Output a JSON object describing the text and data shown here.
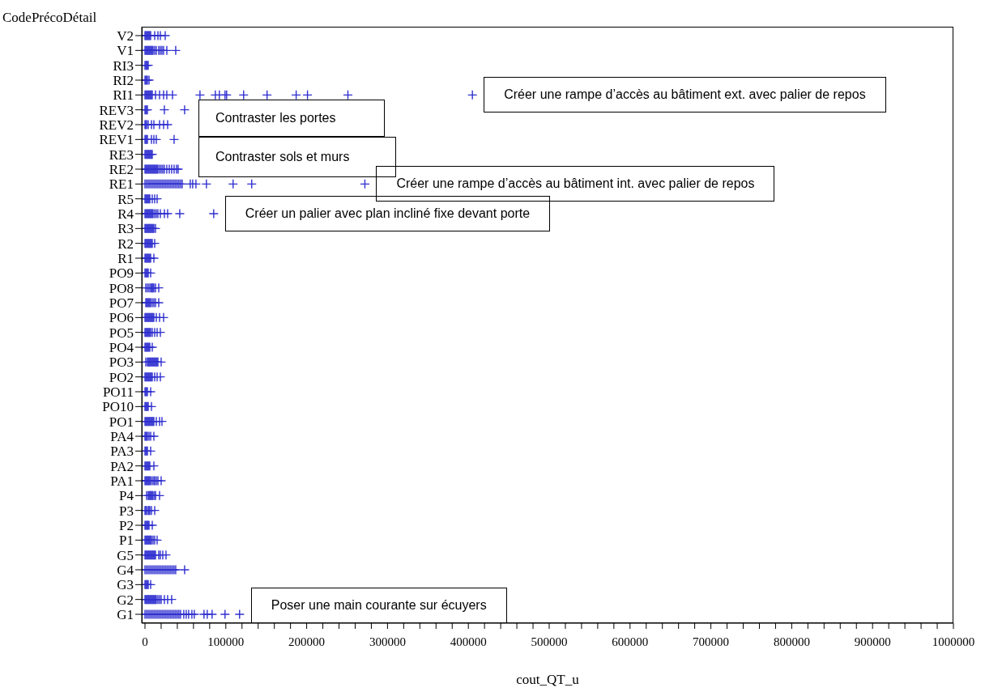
{
  "chart_data": {
    "type": "scatter",
    "orientation": "horizontal",
    "marker": "cross",
    "ylabel": "CodePrécoDétail",
    "xlabel": "cout_QT_u",
    "categories": [
      "V2",
      "V1",
      "RI3",
      "RI2",
      "RI1",
      "REV3",
      "REV2",
      "REV1",
      "RE3",
      "RE2",
      "RE1",
      "R5",
      "R4",
      "R3",
      "R2",
      "R1",
      "PO9",
      "PO8",
      "PO7",
      "PO6",
      "PO5",
      "PO4",
      "PO3",
      "PO2",
      "PO11",
      "PO10",
      "PO1",
      "PA4",
      "PA3",
      "PA2",
      "PA1",
      "P4",
      "P3",
      "P2",
      "P1",
      "G5",
      "G4",
      "G3",
      "G2",
      "G1"
    ],
    "xlim": [
      -4000,
      1000000
    ],
    "xticks": [
      0,
      {
        "value": 20000,
        "label": null
      },
      {
        "value": 40000,
        "label": null
      },
      {
        "value": 60000,
        "label": null
      },
      {
        "value": 80000,
        "label": null
      },
      100000,
      {
        "value": 120000,
        "label": null
      },
      {
        "value": 140000,
        "label": null
      },
      {
        "value": 160000,
        "label": null
      },
      {
        "value": 180000,
        "label": null
      },
      200000,
      {
        "value": 220000,
        "label": null
      },
      {
        "value": 240000,
        "label": null
      },
      {
        "value": 260000,
        "label": null
      },
      {
        "value": 280000,
        "label": null
      },
      300000,
      {
        "value": 320000,
        "label": null
      },
      {
        "value": 340000,
        "label": null
      },
      {
        "value": 360000,
        "label": null
      },
      {
        "value": 380000,
        "label": null
      },
      400000,
      {
        "value": 420000,
        "label": null
      },
      {
        "value": 440000,
        "label": null
      },
      {
        "value": 460000,
        "label": null
      },
      {
        "value": 480000,
        "label": null
      },
      500000,
      {
        "value": 520000,
        "label": null
      },
      {
        "value": 540000,
        "label": null
      },
      {
        "value": 560000,
        "label": null
      },
      {
        "value": 580000,
        "label": null
      },
      600000,
      {
        "value": 620000,
        "label": null
      },
      {
        "value": 640000,
        "label": null
      },
      {
        "value": 660000,
        "label": null
      },
      {
        "value": 680000,
        "label": null
      },
      700000,
      {
        "value": 720000,
        "label": null
      },
      {
        "value": 740000,
        "label": null
      },
      {
        "value": 760000,
        "label": null
      },
      {
        "value": 780000,
        "label": null
      },
      800000,
      {
        "value": 820000,
        "label": null
      },
      {
        "value": 840000,
        "label": null
      },
      {
        "value": 860000,
        "label": null
      },
      {
        "value": 880000,
        "label": null
      },
      900000,
      {
        "value": 920000,
        "label": null
      },
      {
        "value": 940000,
        "label": null
      },
      {
        "value": 960000,
        "label": null
      },
      {
        "value": 980000,
        "label": null
      },
      1000000
    ],
    "annotations": [
      {
        "text": "Créer une rampe d’accès au bâtiment ext. avec palier de repos",
        "x": 405000,
        "y": "RI1"
      },
      "Contraster les portes",
      "Contraster sols et murs",
      {
        "text": "Créer une rampe d’accès au bâtiment int. avec palier de repos",
        "x": 272000,
        "y": "RE1"
      },
      {
        "text": "Créer un palier avec plan incliné fixe devant porte",
        "x": 85000,
        "y": "R4"
      },
      {
        "text": "Poser une main courante sur écuyers",
        "x": 117000,
        "y": "G1"
      }
    ],
    "series": [
      {
        "color": "#3030d0",
        "x": [
          "V2",
          "V2",
          "V2",
          "V2",
          "V2",
          "V2",
          "V2",
          "V2",
          "V2",
          "V2",
          "V2",
          "V2",
          "V1",
          "V1",
          "V1",
          "V1",
          "V1",
          "V1",
          "V1",
          "V1",
          "V1",
          "V1",
          "V1",
          "V1",
          "V1",
          "V1",
          "V1",
          "V1",
          "V1",
          "V1",
          "V1",
          "RI3",
          "RI3",
          "RI3",
          "RI3",
          "RI3",
          "RI2",
          "RI2",
          "RI2",
          "RI2",
          "RI2",
          "RI1",
          "RI1",
          "RI1",
          "RI1",
          "RI1",
          "RI1",
          "RI1",
          "RI1",
          "RI1",
          "RI1",
          "RI1",
          "RI1",
          "RI1",
          "RI1",
          "RI1",
          "RI1",
          "RI1",
          "RI1",
          "RI1",
          "RI1",
          "RI1",
          "RI1",
          "RI1",
          "RI1",
          "RI1",
          "RI1",
          "REV3",
          "REV3",
          "REV3",
          "REV3",
          "REV3",
          "REV3",
          "REV2",
          "REV2",
          "REV2",
          "REV2",
          "REV2",
          "REV2",
          "REV2",
          "REV2",
          "REV2",
          "REV1",
          "REV1",
          "REV1",
          "REV1",
          "REV1",
          "REV1",
          "REV1",
          "REV1",
          "RE3",
          "RE3",
          "RE3",
          "RE3",
          "RE3",
          "RE3",
          "RE3",
          "RE3",
          "RE3",
          "RE3",
          "RE2",
          "RE2",
          "RE2",
          "RE2",
          "RE2",
          "RE2",
          "RE2",
          "RE2",
          "RE2",
          "RE2",
          "RE2",
          "RE2",
          "RE2",
          "RE2",
          "RE2",
          "RE2",
          "RE2",
          "RE2",
          "RE2",
          "RE2",
          "RE2",
          "RE2",
          "RE2",
          "RE2",
          "RE2",
          "RE2",
          "RE2",
          "RE1",
          "RE1",
          "RE1",
          "RE1",
          "RE1",
          "RE1",
          "RE1",
          "RE1",
          "RE1",
          "RE1",
          "RE1",
          "RE1",
          "RE1",
          "RE1",
          "RE1",
          "RE1",
          "RE1",
          "RE1",
          "RE1",
          "RE1",
          "RE1",
          "RE1",
          "RE1",
          "RE1",
          "RE1",
          "RE1",
          "RE1",
          "RE1",
          "RE1",
          "RE1",
          "RE1",
          "R5",
          "R5",
          "R5",
          "R5",
          "R5",
          "R5",
          "R5",
          "R5",
          "R5",
          "R5",
          "R4",
          "R4",
          "R4",
          "R4",
          "R4",
          "R4",
          "R4",
          "R4",
          "R4",
          "R4",
          "R4",
          "R4",
          "R4",
          "R4",
          "R4",
          "R4",
          "R4",
          "R4",
          "R4",
          "R3",
          "R3",
          "R3",
          "R3",
          "R3",
          "R3",
          "R3",
          "R3",
          "R3",
          "R3",
          "R3",
          "R3",
          "R3",
          "R2",
          "R2",
          "R2",
          "R2",
          "R2",
          "R2",
          "R2",
          "R2",
          "R2",
          "R2",
          "R2",
          "R1",
          "R1",
          "R1",
          "R1",
          "R1",
          "R1",
          "R1",
          "R1",
          "R1",
          "PO9",
          "PO9",
          "PO9",
          "PO9",
          "PO9",
          "PO9",
          "PO8",
          "PO8",
          "PO8",
          "PO8",
          "PO8",
          "PO8",
          "PO8",
          "PO8",
          "PO8",
          "PO8",
          "PO7",
          "PO7",
          "PO7",
          "PO7",
          "PO7",
          "PO7",
          "PO7",
          "PO7",
          "PO7",
          "PO7",
          "PO7",
          "PO6",
          "PO6",
          "PO6",
          "PO6",
          "PO6",
          "PO6",
          "PO6",
          "PO6",
          "PO6",
          "PO6",
          "PO6",
          "PO6",
          "PO6",
          "PO6",
          "PO6",
          "PO5",
          "PO5",
          "PO5",
          "PO5",
          "PO5",
          "PO5",
          "PO5",
          "PO5",
          "PO5",
          "PO5",
          "PO5",
          "PO5",
          "PO4",
          "PO4",
          "PO4",
          "PO4",
          "PO4",
          "PO4",
          "PO4",
          "PO4",
          "PO3",
          "PO3",
          "PO3",
          "PO3",
          "PO3",
          "PO3",
          "PO3",
          "PO3",
          "PO3",
          "PO3",
          "PO3",
          "PO3",
          "PO3",
          "PO3",
          "PO3",
          "PO3",
          "PO2",
          "PO2",
          "PO2",
          "PO2",
          "PO2",
          "PO2",
          "PO2",
          "PO2",
          "PO2",
          "PO2",
          "PO2",
          "PO2",
          "PO2",
          "PO11",
          "PO11",
          "PO11",
          "PO11",
          "PO11",
          "PO10",
          "PO10",
          "PO10",
          "PO10",
          "PO10",
          "PO10",
          "PO1",
          "PO1",
          "PO1",
          "PO1",
          "PO1",
          "PO1",
          "PO1",
          "PO1",
          "PO1",
          "PO1",
          "PO1",
          "PO1",
          "PO1",
          "PO1",
          "PO1",
          "PA4",
          "PA4",
          "PA4",
          "PA4",
          "PA4",
          "PA4",
          "PA4",
          "PA3",
          "PA3",
          "PA3",
          "PA3",
          "PA3",
          "PA2",
          "PA2",
          "PA2",
          "PA2",
          "PA2",
          "PA2",
          "PA2",
          "PA2",
          "PA1",
          "PA1",
          "PA1",
          "PA1",
          "PA1",
          "PA1",
          "PA1",
          "PA1",
          "PA1",
          "PA1",
          "PA1",
          "PA1",
          "PA1",
          "PA1",
          "P4",
          "P4",
          "P4",
          "P4",
          "P4",
          "P4",
          "P4",
          "P4",
          "P4",
          "P4",
          "P4",
          "P3",
          "P3",
          "P3",
          "P3",
          "P3",
          "P3",
          "P3",
          "P3",
          "P2",
          "P2",
          "P2",
          "P2",
          "P2",
          "P2",
          "P2",
          "P1",
          "P1",
          "P1",
          "P1",
          "P1",
          "P1",
          "P1",
          "P1",
          "P1",
          "P1",
          "P1",
          "P1",
          "G5",
          "G5",
          "G5",
          "G5",
          "G5",
          "G5",
          "G5",
          "G5",
          "G5",
          "G5",
          "G5",
          "G5",
          "G5",
          "G5",
          "G5",
          "G5",
          "G5",
          "G5",
          "G4",
          "G4",
          "G4",
          "G4",
          "G4",
          "G4",
          "G4",
          "G4",
          "G4",
          "G4",
          "G4",
          "G4",
          "G4",
          "G4",
          "G4",
          "G4",
          "G4",
          "G4",
          "G4",
          "G4",
          "G4",
          "G3",
          "G3",
          "G3",
          "G3",
          "G3",
          "G3",
          "G2",
          "G2",
          "G2",
          "G2",
          "G2",
          "G2",
          "G2",
          "G2",
          "G2",
          "G2",
          "G2",
          "G2",
          "G2",
          "G2",
          "G2",
          "G2",
          "G2",
          "G2",
          "G2",
          "G2",
          "G2",
          "G1",
          "G1",
          "G1",
          "G1",
          "G1",
          "G1",
          "G1",
          "G1",
          "G1",
          "G1",
          "G1",
          "G1",
          "G1",
          "G1",
          "G1",
          "G1",
          "G1",
          "G1",
          "G1",
          "G1",
          "G1",
          "G1",
          "G1",
          "G1",
          "G1",
          "G1",
          "G1",
          "G1",
          "G1",
          "G1",
          "G1",
          "G1",
          "G1"
        ],
        "values": [
          0,
          1000,
          2000,
          3000,
          4000,
          5000,
          6000,
          7000,
          12000,
          16000,
          19000,
          25000,
          0,
          1000,
          2000,
          3000,
          4000,
          5000,
          6000,
          7000,
          8000,
          9000,
          10000,
          12000,
          14000,
          17000,
          19000,
          21000,
          23000,
          27000,
          38000,
          0,
          1000,
          2000,
          3000,
          4000,
          0,
          1000,
          2000,
          3000,
          5000,
          0,
          1000,
          2000,
          3000,
          4000,
          5000,
          6000,
          7000,
          8000,
          9000,
          13000,
          18000,
          23000,
          27000,
          34000,
          68000,
          87000,
          92000,
          99000,
          101000,
          122000,
          151000,
          187000,
          201000,
          251000,
          405000,
          0,
          1000,
          2000,
          3000,
          24000,
          49000,
          0,
          1000,
          2000,
          4000,
          8000,
          11000,
          18000,
          23000,
          28000,
          0,
          1000,
          2000,
          3000,
          8000,
          11000,
          14000,
          36000,
          0,
          1000,
          2000,
          3000,
          4000,
          5000,
          6000,
          7000,
          8000,
          9000,
          0,
          1000,
          2000,
          3000,
          4000,
          5000,
          6000,
          7000,
          8000,
          9000,
          10000,
          11000,
          12000,
          13000,
          14000,
          15000,
          16000,
          18000,
          20000,
          22000,
          24000,
          27000,
          30000,
          33000,
          36000,
          39000,
          41000,
          0,
          2000,
          4000,
          6000,
          8000,
          10000,
          12000,
          14000,
          16000,
          18000,
          20000,
          22000,
          24000,
          26000,
          28000,
          30000,
          32000,
          34000,
          36000,
          38000,
          40000,
          42000,
          44000,
          46000,
          56000,
          59000,
          63000,
          76000,
          109000,
          132000,
          272000,
          0,
          1000,
          2000,
          3000,
          4000,
          5000,
          6000,
          9000,
          12000,
          15000,
          0,
          1000,
          2000,
          3000,
          4000,
          5000,
          6000,
          7000,
          8000,
          9000,
          10000,
          12000,
          14000,
          16000,
          19000,
          24000,
          28000,
          43000,
          85000,
          0,
          1000,
          2000,
          3000,
          4000,
          5000,
          6000,
          7000,
          8000,
          9000,
          10000,
          11000,
          13000,
          0,
          1000,
          2000,
          3000,
          4000,
          5000,
          6000,
          7000,
          8000,
          9000,
          12000,
          0,
          1000,
          2000,
          3000,
          4000,
          5000,
          6000,
          7000,
          11000,
          0,
          1000,
          2000,
          3000,
          4000,
          7000,
          1000,
          3000,
          5000,
          7000,
          8000,
          9000,
          10000,
          11000,
          13000,
          17000,
          1000,
          2000,
          3000,
          4000,
          5000,
          6000,
          7000,
          9000,
          11000,
          13000,
          17000,
          0,
          1000,
          2000,
          3000,
          4000,
          5000,
          6000,
          7000,
          8000,
          9000,
          10000,
          11000,
          14000,
          18000,
          23000,
          0,
          1000,
          2000,
          3000,
          4000,
          5000,
          6000,
          7000,
          9000,
          12000,
          15000,
          19000,
          0,
          1000,
          2000,
          3000,
          4000,
          5000,
          6000,
          9000,
          1000,
          3000,
          4000,
          5000,
          6000,
          7000,
          8000,
          9000,
          10000,
          11000,
          12000,
          13000,
          14000,
          15000,
          16000,
          20000,
          0,
          1000,
          2000,
          3000,
          4000,
          5000,
          6000,
          7000,
          8000,
          9000,
          12000,
          15000,
          19000,
          0,
          1000,
          2000,
          3000,
          7000,
          0,
          1000,
          2000,
          3000,
          4000,
          8000,
          0,
          1000,
          2000,
          3000,
          4000,
          5000,
          6000,
          7000,
          8000,
          9000,
          10000,
          11000,
          14000,
          18000,
          21000,
          0,
          1000,
          2000,
          3000,
          5000,
          7000,
          11000,
          0,
          1000,
          2000,
          3000,
          7000,
          0,
          1000,
          2000,
          3000,
          4000,
          5000,
          6000,
          11000,
          0,
          1000,
          2000,
          3000,
          4000,
          5000,
          6000,
          7000,
          9000,
          11000,
          12000,
          14000,
          16000,
          20000,
          2000,
          4000,
          5000,
          6000,
          7000,
          8000,
          9000,
          10000,
          12000,
          13000,
          18000,
          0,
          1000,
          2000,
          4000,
          5000,
          6000,
          8000,
          12000,
          0,
          1000,
          2000,
          3000,
          4000,
          5000,
          9000,
          0,
          1000,
          2000,
          3000,
          4000,
          5000,
          6000,
          7000,
          8000,
          10000,
          12000,
          15000,
          0,
          1000,
          2000,
          3000,
          4000,
          5000,
          6000,
          7000,
          8000,
          9000,
          10000,
          11000,
          12000,
          13000,
          17000,
          19000,
          22000,
          26000,
          0,
          2000,
          4000,
          6000,
          8000,
          10000,
          12000,
          14000,
          16000,
          18000,
          20000,
          22000,
          24000,
          26000,
          28000,
          30000,
          32000,
          34000,
          36000,
          38000,
          49000,
          0,
          1000,
          2000,
          3000,
          4000,
          7000,
          0,
          1000,
          2000,
          3000,
          4000,
          5000,
          6000,
          7000,
          8000,
          9000,
          10000,
          11000,
          12000,
          13000,
          14000,
          16000,
          18000,
          20000,
          24000,
          28000,
          33000,
          0,
          2000,
          4000,
          6000,
          8000,
          10000,
          12000,
          14000,
          16000,
          18000,
          20000,
          22000,
          24000,
          26000,
          28000,
          30000,
          32000,
          34000,
          36000,
          38000,
          40000,
          42000,
          44000,
          48000,
          51000,
          54000,
          58000,
          61000,
          73000,
          77000,
          83000,
          99000,
          117000
        ]
      }
    ]
  }
}
